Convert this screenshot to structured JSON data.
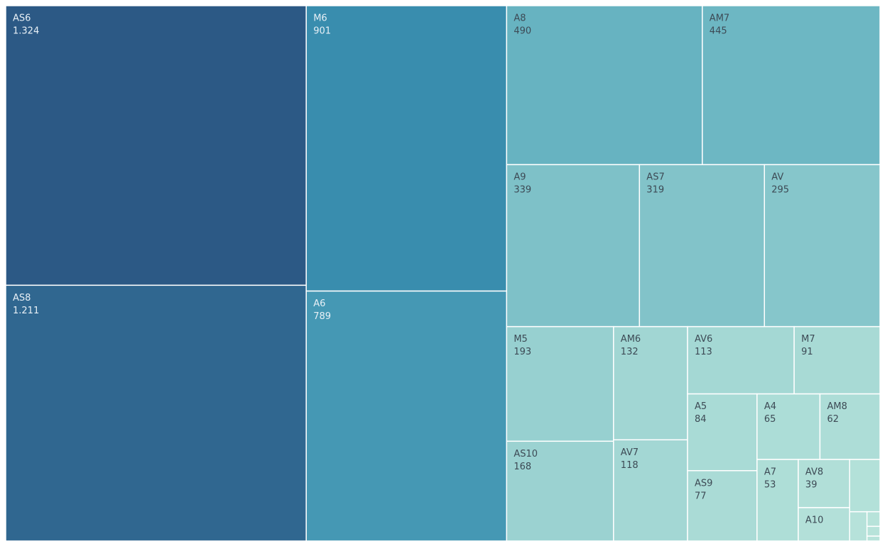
{
  "chart_data": {
    "type": "treemap",
    "categories": [
      "AS6",
      "AS8",
      "M6",
      "A6",
      "A8",
      "AM7",
      "A9",
      "AS7",
      "AV",
      "M5",
      "AS10",
      "AM6",
      "AV7",
      "AV6",
      "M7",
      "A5",
      "AS9",
      "A4",
      "AM8",
      "A7",
      "AV8",
      "A10",
      null,
      null,
      null,
      null,
      null
    ],
    "values": [
      1324,
      1211,
      901,
      789,
      490,
      445,
      339,
      319,
      295,
      193,
      168,
      132,
      118,
      113,
      91,
      84,
      77,
      65,
      62,
      53,
      39,
      27,
      25,
      8,
      3,
      2,
      1
    ],
    "value_labels": [
      "1.324",
      "1.211",
      "901",
      "789",
      "490",
      "445",
      "339",
      "319",
      "295",
      "193",
      "168",
      "132",
      "118",
      "113",
      "91",
      "84",
      "77",
      "65",
      "62",
      "53",
      "39",
      null,
      null,
      null,
      null,
      null,
      null
    ],
    "colors": [
      "#b7e3da",
      "#6db7c3",
      "#3a8fb0",
      "#2c5985"
    ]
  }
}
